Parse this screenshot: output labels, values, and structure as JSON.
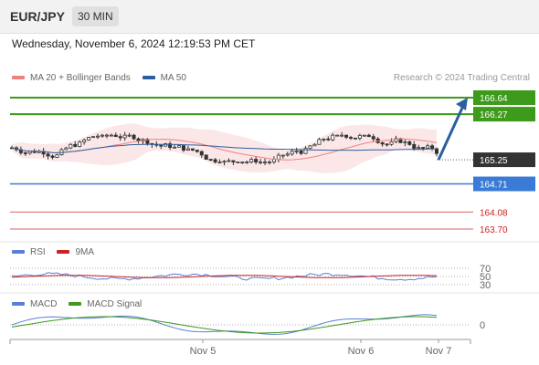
{
  "header": {
    "symbol": "EUR/JPY",
    "timeframe": "30 MIN"
  },
  "datetime": "Wednesday, November 6, 2024 12:19:53 PM CET",
  "copyright": "Research © 2024 Trading Central",
  "legend": {
    "main": [
      {
        "label": "MA 20 + Bollinger Bands",
        "color": "#f08080"
      },
      {
        "label": "MA 50",
        "color": "#2c5f9e"
      }
    ],
    "rsi": [
      {
        "label": "RSI",
        "color": "#5b7fd6"
      },
      {
        "label": "9MA",
        "color": "#cc2222"
      }
    ],
    "macd": [
      {
        "label": "MACD",
        "color": "#5b7fd6"
      },
      {
        "label": "MACD Signal",
        "color": "#3d9a1a"
      }
    ]
  },
  "chart_data": {
    "type": "candlestick",
    "price_range": [
      163.5,
      166.8
    ],
    "current_price": "165.25",
    "levels": [
      {
        "value": "166.64",
        "style": "resistance",
        "color": "#3d9a1a"
      },
      {
        "value": "166.27",
        "style": "resistance",
        "color": "#3d9a1a"
      },
      {
        "value": "165.25",
        "style": "current",
        "color": "#333333"
      },
      {
        "value": "164.71",
        "style": "support",
        "color": "#3a7bd5"
      },
      {
        "value": "164.08",
        "style": "support-text",
        "color": "#cc2222"
      },
      {
        "value": "163.70",
        "style": "support-text",
        "color": "#cc2222"
      }
    ],
    "x_ticks": [
      "Nov 5",
      "Nov 6",
      "Nov 7"
    ],
    "rsi_levels": [
      "70",
      "50",
      "30"
    ],
    "macd_levels": [
      "0"
    ],
    "forecast_arrow": {
      "from": 165.25,
      "to": 166.64
    },
    "candle_count": 95,
    "price_band": [
      165.2,
      165.8
    ]
  }
}
